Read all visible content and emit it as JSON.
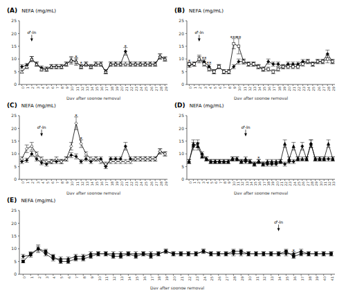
{
  "chart_data": [
    {
      "type": "line",
      "title": "(A)",
      "xlabel": "Day after sponge removal",
      "ylabel": "NEFA (mg/mL)",
      "x": [
        0,
        1,
        2,
        3,
        4,
        5,
        6,
        7,
        8,
        9,
        10,
        11,
        12,
        13,
        14,
        15,
        16,
        17,
        18,
        19,
        20,
        21,
        22,
        23,
        24,
        25,
        26,
        27,
        28,
        29
      ],
      "series": [
        {
          "color": "#000000",
          "marker": "diamond",
          "values": [
            7,
            7.5,
            10,
            8,
            6.5,
            6,
            7,
            7,
            7,
            8,
            9.5,
            9,
            7,
            8,
            7,
            8,
            8,
            5,
            8,
            8,
            8,
            13,
            8,
            8,
            8,
            8,
            8,
            8,
            11,
            10
          ],
          "errors": [
            0.8,
            0.8,
            1,
            0.8,
            0.8,
            0.8,
            0.8,
            0.8,
            0.8,
            0.8,
            1,
            1,
            0.8,
            0.8,
            0.8,
            0.8,
            0.8,
            0.8,
            0.8,
            0.8,
            0.8,
            1.5,
            0.8,
            0.8,
            0.8,
            0.8,
            0.8,
            0.8,
            1,
            0.8
          ]
        },
        {
          "color": "#000000",
          "marker": "triangle-open",
          "values": [
            5,
            7,
            10,
            8,
            6,
            6,
            7,
            7,
            7,
            8,
            9.5,
            9,
            7,
            8,
            7,
            8,
            8,
            5,
            8,
            8,
            8,
            8,
            8,
            8,
            8,
            8,
            8,
            8,
            11,
            10
          ],
          "errors": [
            0.5,
            0.8,
            1,
            0.8,
            0.8,
            0.8,
            0.8,
            0.8,
            0.8,
            0.8,
            1.5,
            1.5,
            0.8,
            0.8,
            0.8,
            0.8,
            0.8,
            0.8,
            0.8,
            0.8,
            0.8,
            0.8,
            0.8,
            0.8,
            0.8,
            0.8,
            0.8,
            0.8,
            1,
            0.8
          ]
        }
      ],
      "annotations": [
        {
          "x": 11,
          "y": 11,
          "text": "*"
        },
        {
          "x": 12,
          "y": 8.3,
          "text": "*"
        },
        {
          "x": 21,
          "y": 15,
          "text": "*"
        },
        {
          "x": 2,
          "y": 17,
          "text_x": 2,
          "text_y": 19.5,
          "text": "♂-In"
        }
      ],
      "xlim": [
        -0.5,
        29.5
      ],
      "ylim": [
        0,
        25
      ],
      "yticks": [
        0,
        5,
        10,
        15,
        20,
        25
      ],
      "xticks": [
        0,
        1,
        2,
        3,
        4,
        5,
        6,
        7,
        8,
        9,
        10,
        11,
        12,
        13,
        14,
        15,
        16,
        17,
        18,
        19,
        20,
        21,
        22,
        23,
        24,
        25,
        26,
        27,
        28,
        29
      ],
      "grid": false
    },
    {
      "type": "line",
      "title": "(B)",
      "xlabel": "Day after sponge removal",
      "ylabel": "NEFA (mg/mL)",
      "x": [
        0,
        1,
        2,
        3,
        4,
        5,
        6,
        7,
        8,
        9,
        10,
        11,
        12,
        13,
        14,
        15,
        16,
        17,
        18,
        19,
        20,
        21,
        22,
        23,
        24,
        25,
        26,
        27,
        28,
        29
      ],
      "series": [
        {
          "color": "#000000",
          "marker": "diamond",
          "values": [
            7.5,
            8,
            10,
            9,
            7,
            5,
            7,
            5,
            5,
            7,
            9,
            9,
            8,
            8,
            7,
            6,
            9,
            8,
            8,
            7,
            8,
            8,
            8,
            9,
            9,
            8,
            9,
            9,
            12,
            9
          ],
          "errors": [
            0.8,
            0.8,
            1,
            0.8,
            0.8,
            0.8,
            0.8,
            0.8,
            0.8,
            0.8,
            1,
            1,
            0.8,
            0.8,
            0.8,
            0.8,
            1,
            0.8,
            0.8,
            0.8,
            0.8,
            0.8,
            0.8,
            0.8,
            0.8,
            0.8,
            0.8,
            0.8,
            1.5,
            0.8
          ]
        },
        {
          "color": "#000000",
          "marker": "square-open",
          "values": [
            8,
            8,
            10,
            8,
            6,
            5,
            7,
            5,
            5,
            16,
            15,
            9,
            8,
            8,
            7,
            6,
            6,
            5,
            6,
            7,
            7,
            7,
            7,
            8,
            9,
            8,
            9,
            9,
            10,
            9
          ],
          "errors": [
            0.8,
            0.8,
            1.5,
            0.8,
            0.8,
            0.8,
            0.8,
            0.8,
            0.8,
            2,
            3,
            0.8,
            0.8,
            0.8,
            0.8,
            0.8,
            0.8,
            0.8,
            0.8,
            0.8,
            0.8,
            0.8,
            0.8,
            0.8,
            0.8,
            0.8,
            0.8,
            0.8,
            1.5,
            0.8
          ]
        }
      ],
      "annotations": [
        {
          "x": 0,
          "y": 9.3,
          "text": "*"
        },
        {
          "x": 3,
          "y": 10.3,
          "text": "**"
        },
        {
          "x": 4,
          "y": 8.3,
          "text": "**"
        },
        {
          "x": 9,
          "y": 18.5,
          "text": "***"
        },
        {
          "x": 10,
          "y": 18.5,
          "text": "**"
        },
        {
          "x": 2,
          "y": 17,
          "text_x": 2,
          "text_y": 19.5,
          "text": "♂-In"
        }
      ],
      "xlim": [
        -0.5,
        29.5
      ],
      "ylim": [
        0,
        25
      ],
      "yticks": [
        0,
        5,
        10,
        15,
        20,
        25
      ],
      "xticks": [
        0,
        1,
        2,
        3,
        4,
        5,
        6,
        7,
        8,
        9,
        10,
        11,
        12,
        13,
        14,
        15,
        16,
        17,
        18,
        19,
        20,
        21,
        22,
        23,
        24,
        25,
        26,
        27,
        28,
        29
      ],
      "grid": false
    },
    {
      "type": "line",
      "title": "(C)",
      "xlabel": "Day after sponge removal",
      "ylabel": "NEFA (mg/mL)",
      "x": [
        0,
        1,
        2,
        3,
        4,
        5,
        6,
        7,
        8,
        9,
        10,
        11,
        12,
        13,
        14,
        15,
        16,
        17,
        18,
        19,
        20,
        21,
        22,
        23,
        24,
        25,
        26,
        27,
        28,
        29
      ],
      "series": [
        {
          "color": "#000000",
          "marker": "diamond",
          "values": [
            7,
            7.5,
            10,
            8,
            6.5,
            6,
            7,
            7,
            7,
            8,
            9.5,
            9,
            7,
            8,
            7,
            8,
            8,
            5,
            8,
            8,
            8,
            13,
            8,
            8,
            8,
            8,
            8,
            8,
            11,
            10
          ],
          "errors": [
            0.8,
            0.8,
            1,
            0.8,
            0.8,
            0.8,
            0.8,
            0.8,
            0.8,
            0.8,
            1,
            1,
            0.8,
            0.8,
            0.8,
            0.8,
            0.8,
            0.8,
            0.8,
            0.8,
            0.8,
            1.5,
            0.8,
            0.8,
            0.8,
            0.8,
            0.8,
            0.8,
            1,
            0.8
          ]
        },
        {
          "color": "#000000",
          "marker": "diamond-open",
          "values": [
            8,
            12,
            13,
            10,
            8,
            7,
            7,
            8,
            7,
            8,
            13,
            22,
            14,
            10,
            8,
            8,
            7,
            6,
            7,
            7,
            7,
            7,
            7,
            8,
            8,
            8,
            8,
            8,
            11,
            10
          ],
          "errors": [
            0.8,
            1.5,
            1.5,
            0.8,
            0.8,
            0.8,
            0.8,
            0.8,
            0.8,
            0.8,
            1.5,
            2.5,
            1.5,
            0.8,
            0.8,
            0.8,
            0.8,
            0.8,
            0.8,
            0.8,
            0.8,
            0.8,
            0.8,
            0.8,
            0.8,
            0.8,
            0.8,
            0.8,
            1,
            0.8
          ]
        }
      ],
      "annotations": [
        {
          "x": 11,
          "y": 25,
          "text": "*"
        },
        {
          "x": 12,
          "y": 16,
          "text": "*"
        },
        {
          "x": 4,
          "y": 17,
          "text_x": 4,
          "text_y": 19.5,
          "text": "♂-In"
        }
      ],
      "xlim": [
        -0.5,
        29.5
      ],
      "ylim": [
        0,
        25
      ],
      "yticks": [
        0,
        5,
        10,
        15,
        20,
        25
      ],
      "xticks": [
        0,
        1,
        2,
        3,
        4,
        5,
        6,
        7,
        8,
        9,
        10,
        11,
        12,
        13,
        14,
        15,
        16,
        17,
        18,
        19,
        20,
        21,
        22,
        23,
        24,
        25,
        26,
        27,
        28,
        29
      ],
      "grid": false
    },
    {
      "type": "line",
      "title": "(D)",
      "xlabel": "Day after sponge removal",
      "ylabel": "NEFA (mg/mL)",
      "x": [
        0,
        1,
        2,
        3,
        4,
        5,
        6,
        7,
        8,
        9,
        10,
        11,
        12,
        13,
        14,
        15,
        16,
        17,
        18,
        19,
        20,
        21,
        22,
        23,
        24,
        25,
        26,
        27,
        28,
        29,
        30,
        31,
        32,
        33
      ],
      "series": [
        {
          "color": "#000000",
          "marker": "diamond",
          "values": [
            7,
            13,
            14,
            10,
            8,
            7,
            7,
            7,
            7,
            7,
            8,
            8,
            7,
            7,
            7,
            6,
            7,
            6,
            6,
            6,
            6,
            7,
            6,
            7,
            7,
            8,
            13,
            8,
            14,
            8,
            8,
            8,
            8,
            8
          ],
          "errors": [
            0.8,
            1.5,
            1.5,
            0.8,
            0.8,
            0.8,
            0.8,
            0.8,
            0.8,
            0.8,
            0.8,
            0.8,
            0.8,
            0.8,
            0.8,
            0.8,
            0.8,
            0.8,
            0.8,
            0.8,
            0.8,
            0.8,
            0.8,
            0.8,
            0.8,
            0.8,
            1.5,
            0.8,
            1.5,
            0.8,
            0.8,
            0.8,
            0.8,
            0.8
          ]
        },
        {
          "color": "#000000",
          "marker": "triangle",
          "values": [
            7,
            14,
            13,
            9,
            8,
            7,
            7,
            7,
            7,
            7,
            8,
            8,
            7,
            8,
            7,
            6,
            7,
            6,
            7,
            7,
            7,
            7,
            14,
            8,
            13,
            8,
            8,
            8,
            14,
            8,
            8,
            8,
            14,
            8
          ],
          "errors": [
            0.8,
            1.5,
            1.5,
            0.8,
            0.8,
            0.8,
            0.8,
            0.8,
            0.8,
            0.8,
            0.8,
            0.8,
            0.8,
            0.8,
            0.8,
            0.8,
            0.8,
            0.8,
            0.8,
            0.8,
            0.8,
            0.8,
            1.5,
            0.8,
            1.5,
            0.8,
            0.8,
            0.8,
            1.5,
            0.8,
            0.8,
            0.8,
            1.5,
            0.8
          ]
        }
      ],
      "annotations": [
        {
          "x": 16,
          "y": 8.3,
          "text": "*"
        },
        {
          "x": 13,
          "y": 17,
          "text_x": 13,
          "text_y": 19.5,
          "text": "♂-In"
        }
      ],
      "xlim": [
        -0.5,
        33.5
      ],
      "ylim": [
        0,
        25
      ],
      "yticks": [
        0,
        5,
        10,
        15,
        20,
        25
      ],
      "xticks": [
        0,
        1,
        2,
        3,
        4,
        5,
        6,
        7,
        8,
        9,
        10,
        11,
        12,
        13,
        14,
        15,
        16,
        17,
        18,
        19,
        20,
        21,
        22,
        23,
        24,
        25,
        26,
        27,
        28,
        29,
        30,
        31,
        32,
        33
      ],
      "grid": false
    },
    {
      "type": "line",
      "title": "(E)",
      "xlabel": "Day after sponge removal",
      "ylabel": "NEFA (mg/mL)",
      "x": [
        0,
        1,
        2,
        3,
        4,
        5,
        6,
        7,
        8,
        9,
        10,
        11,
        12,
        13,
        14,
        15,
        16,
        17,
        18,
        19,
        20,
        21,
        22,
        23,
        24,
        25,
        26,
        27,
        28,
        29,
        30,
        31,
        32,
        33,
        34,
        35,
        36,
        37,
        38,
        39,
        40,
        41
      ],
      "series": [
        {
          "color": "#000000",
          "marker": "diamond",
          "values": [
            7,
            7.5,
            10,
            8,
            6,
            6,
            6,
            7,
            7,
            8,
            8,
            8,
            8,
            8,
            8,
            8,
            8,
            8,
            8,
            9,
            8,
            8,
            8,
            8,
            9,
            8,
            8,
            8,
            8,
            8,
            8,
            8,
            8,
            8,
            8,
            8,
            8,
            9,
            8,
            8,
            8,
            8
          ],
          "errors": [
            0.8,
            0.8,
            1,
            0.8,
            0.8,
            0.8,
            0.8,
            0.8,
            0.8,
            0.8,
            0.8,
            0.8,
            0.8,
            0.8,
            0.8,
            0.8,
            0.8,
            0.8,
            0.8,
            0.8,
            0.8,
            0.8,
            0.8,
            0.8,
            0.8,
            0.8,
            0.8,
            0.8,
            0.8,
            0.8,
            0.8,
            0.8,
            0.8,
            0.8,
            0.8,
            0.8,
            0.8,
            0.8,
            0.8,
            0.8,
            0.8,
            0.8
          ]
        },
        {
          "color": "#000000",
          "marker": "square",
          "values": [
            5,
            8,
            10,
            9,
            7,
            5,
            5,
            6,
            6,
            7,
            8,
            8,
            7,
            7,
            8,
            7,
            8,
            7,
            8,
            9,
            8,
            8,
            8,
            8,
            9,
            8,
            8,
            8,
            9,
            9,
            8,
            8,
            8,
            8,
            8,
            9,
            7,
            8,
            8,
            8,
            8,
            8
          ],
          "errors": [
            0.5,
            0.8,
            1.5,
            0.8,
            0.8,
            0.8,
            0.8,
            0.8,
            0.8,
            0.8,
            0.8,
            0.8,
            0.8,
            0.8,
            0.8,
            0.8,
            0.8,
            0.8,
            0.8,
            0.8,
            0.8,
            0.8,
            0.8,
            0.8,
            0.8,
            0.8,
            0.8,
            0.8,
            0.8,
            0.8,
            0.8,
            0.8,
            0.8,
            0.8,
            0.8,
            0.8,
            0.8,
            0.8,
            0.8,
            0.8,
            0.8,
            0.8
          ]
        }
      ],
      "annotations": [
        {
          "x": 36,
          "y": 9.3,
          "text": "*"
        },
        {
          "x": 34,
          "y": 17,
          "text_x": 34,
          "text_y": 19.5,
          "text": "♂-In"
        }
      ],
      "xlim": [
        -0.5,
        41.5
      ],
      "ylim": [
        0,
        25
      ],
      "yticks": [
        0,
        5,
        10,
        15,
        20,
        25
      ],
      "xticks": [
        0,
        1,
        2,
        3,
        4,
        5,
        6,
        7,
        8,
        9,
        10,
        11,
        12,
        13,
        14,
        15,
        16,
        17,
        18,
        19,
        20,
        21,
        22,
        23,
        24,
        25,
        26,
        27,
        28,
        29,
        30,
        31,
        32,
        33,
        34,
        35,
        36,
        37,
        38,
        39,
        40,
        41
      ],
      "grid": false
    }
  ]
}
